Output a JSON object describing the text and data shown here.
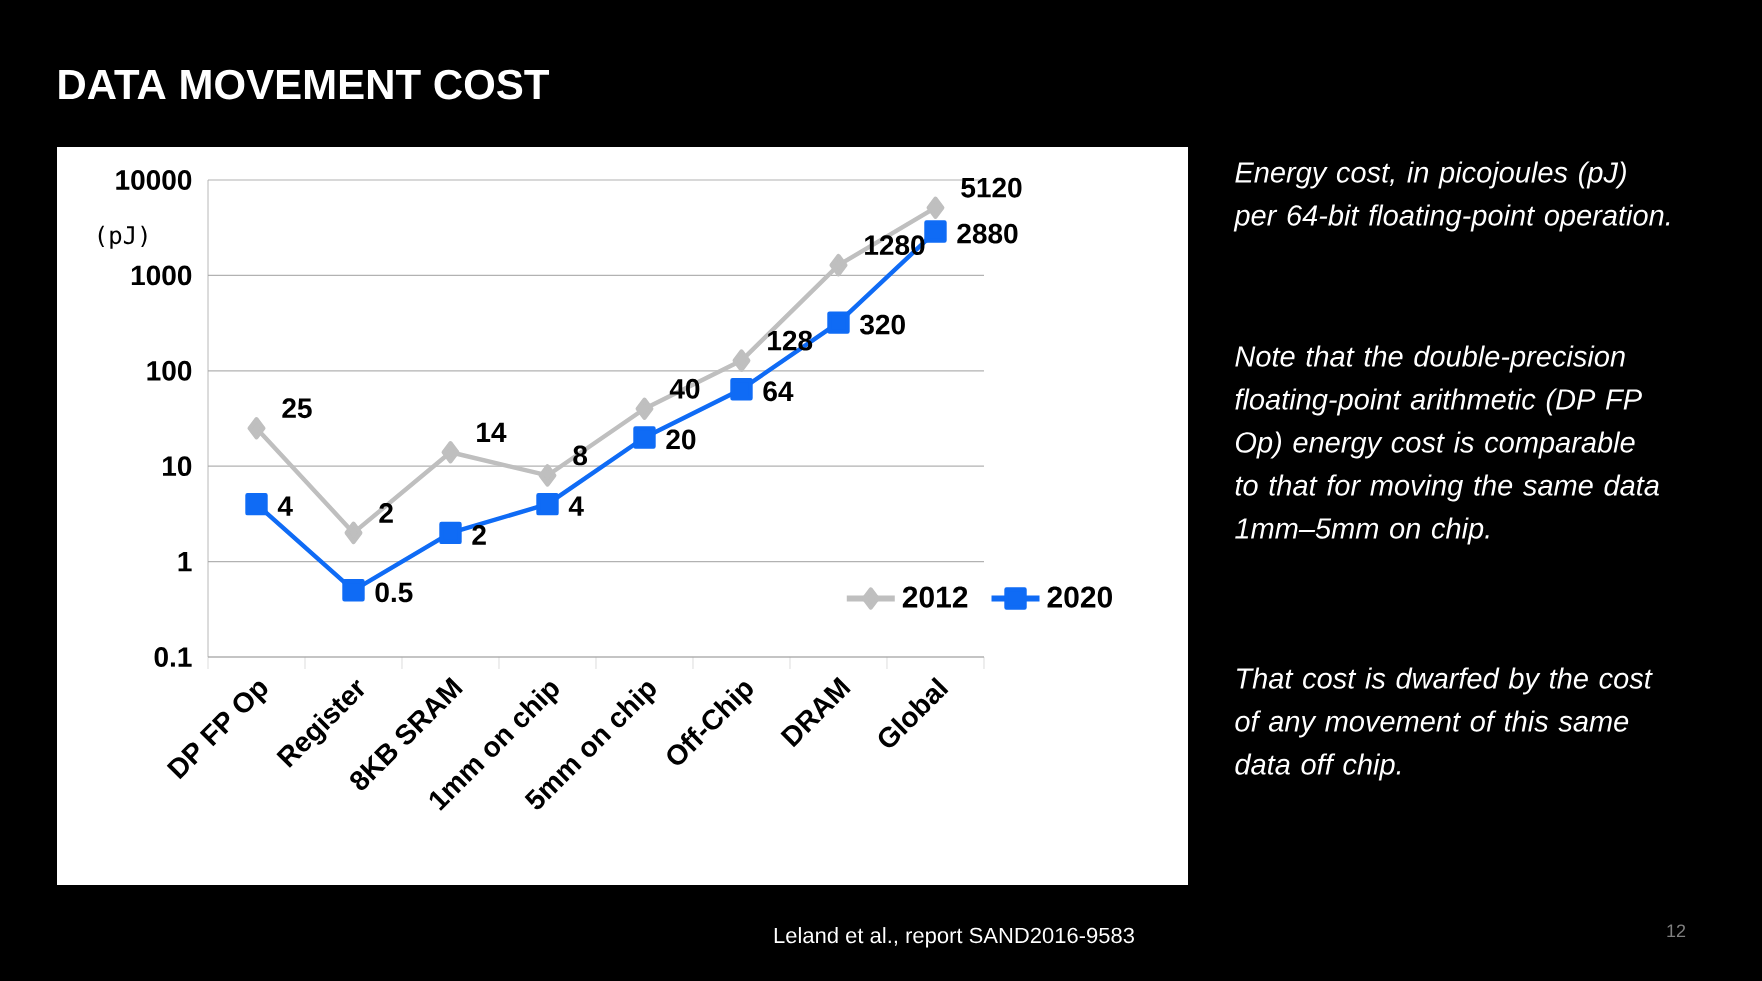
{
  "chart_data": {
    "type": "line",
    "title": "DATA MOVEMENT COST",
    "ylabel": "(pJ)",
    "categories": [
      "DP FP Op",
      "Register",
      "8KB SRAM",
      "1mm on chip",
      "5mm on chip",
      "Off-Chip",
      "DRAM",
      "Global"
    ],
    "series": [
      {
        "name": "2012",
        "color": "#bfbfbf",
        "marker": "diamond",
        "values": [
          25,
          2,
          14,
          8,
          40,
          128,
          1280,
          5120
        ]
      },
      {
        "name": "2020",
        "color": "#0f6bf5",
        "marker": "square",
        "values": [
          4,
          0.5,
          2,
          4,
          20,
          64,
          320,
          2880
        ]
      }
    ],
    "log": "y",
    "ylim": [
      0.1,
      10000
    ],
    "yticks": [
      0.1,
      1,
      10,
      100,
      1000,
      10000
    ],
    "grid": "y",
    "legend": "bottom right",
    "data_labels": true,
    "line_style": "solid",
    "annotations": [
      "Energy cost, in picojoules (pJ) per 64-bit floating-point operation.",
      "Note that the double-precision floating-point arithmetic (DP FP Op) energy cost is comparable to that for moving the same data 1mm–5mm on chip.",
      "That cost is dwarfed by the cost of any movement of this same data off chip.",
      "Leland et al., report SAND2016-9583",
      "12"
    ]
  }
}
